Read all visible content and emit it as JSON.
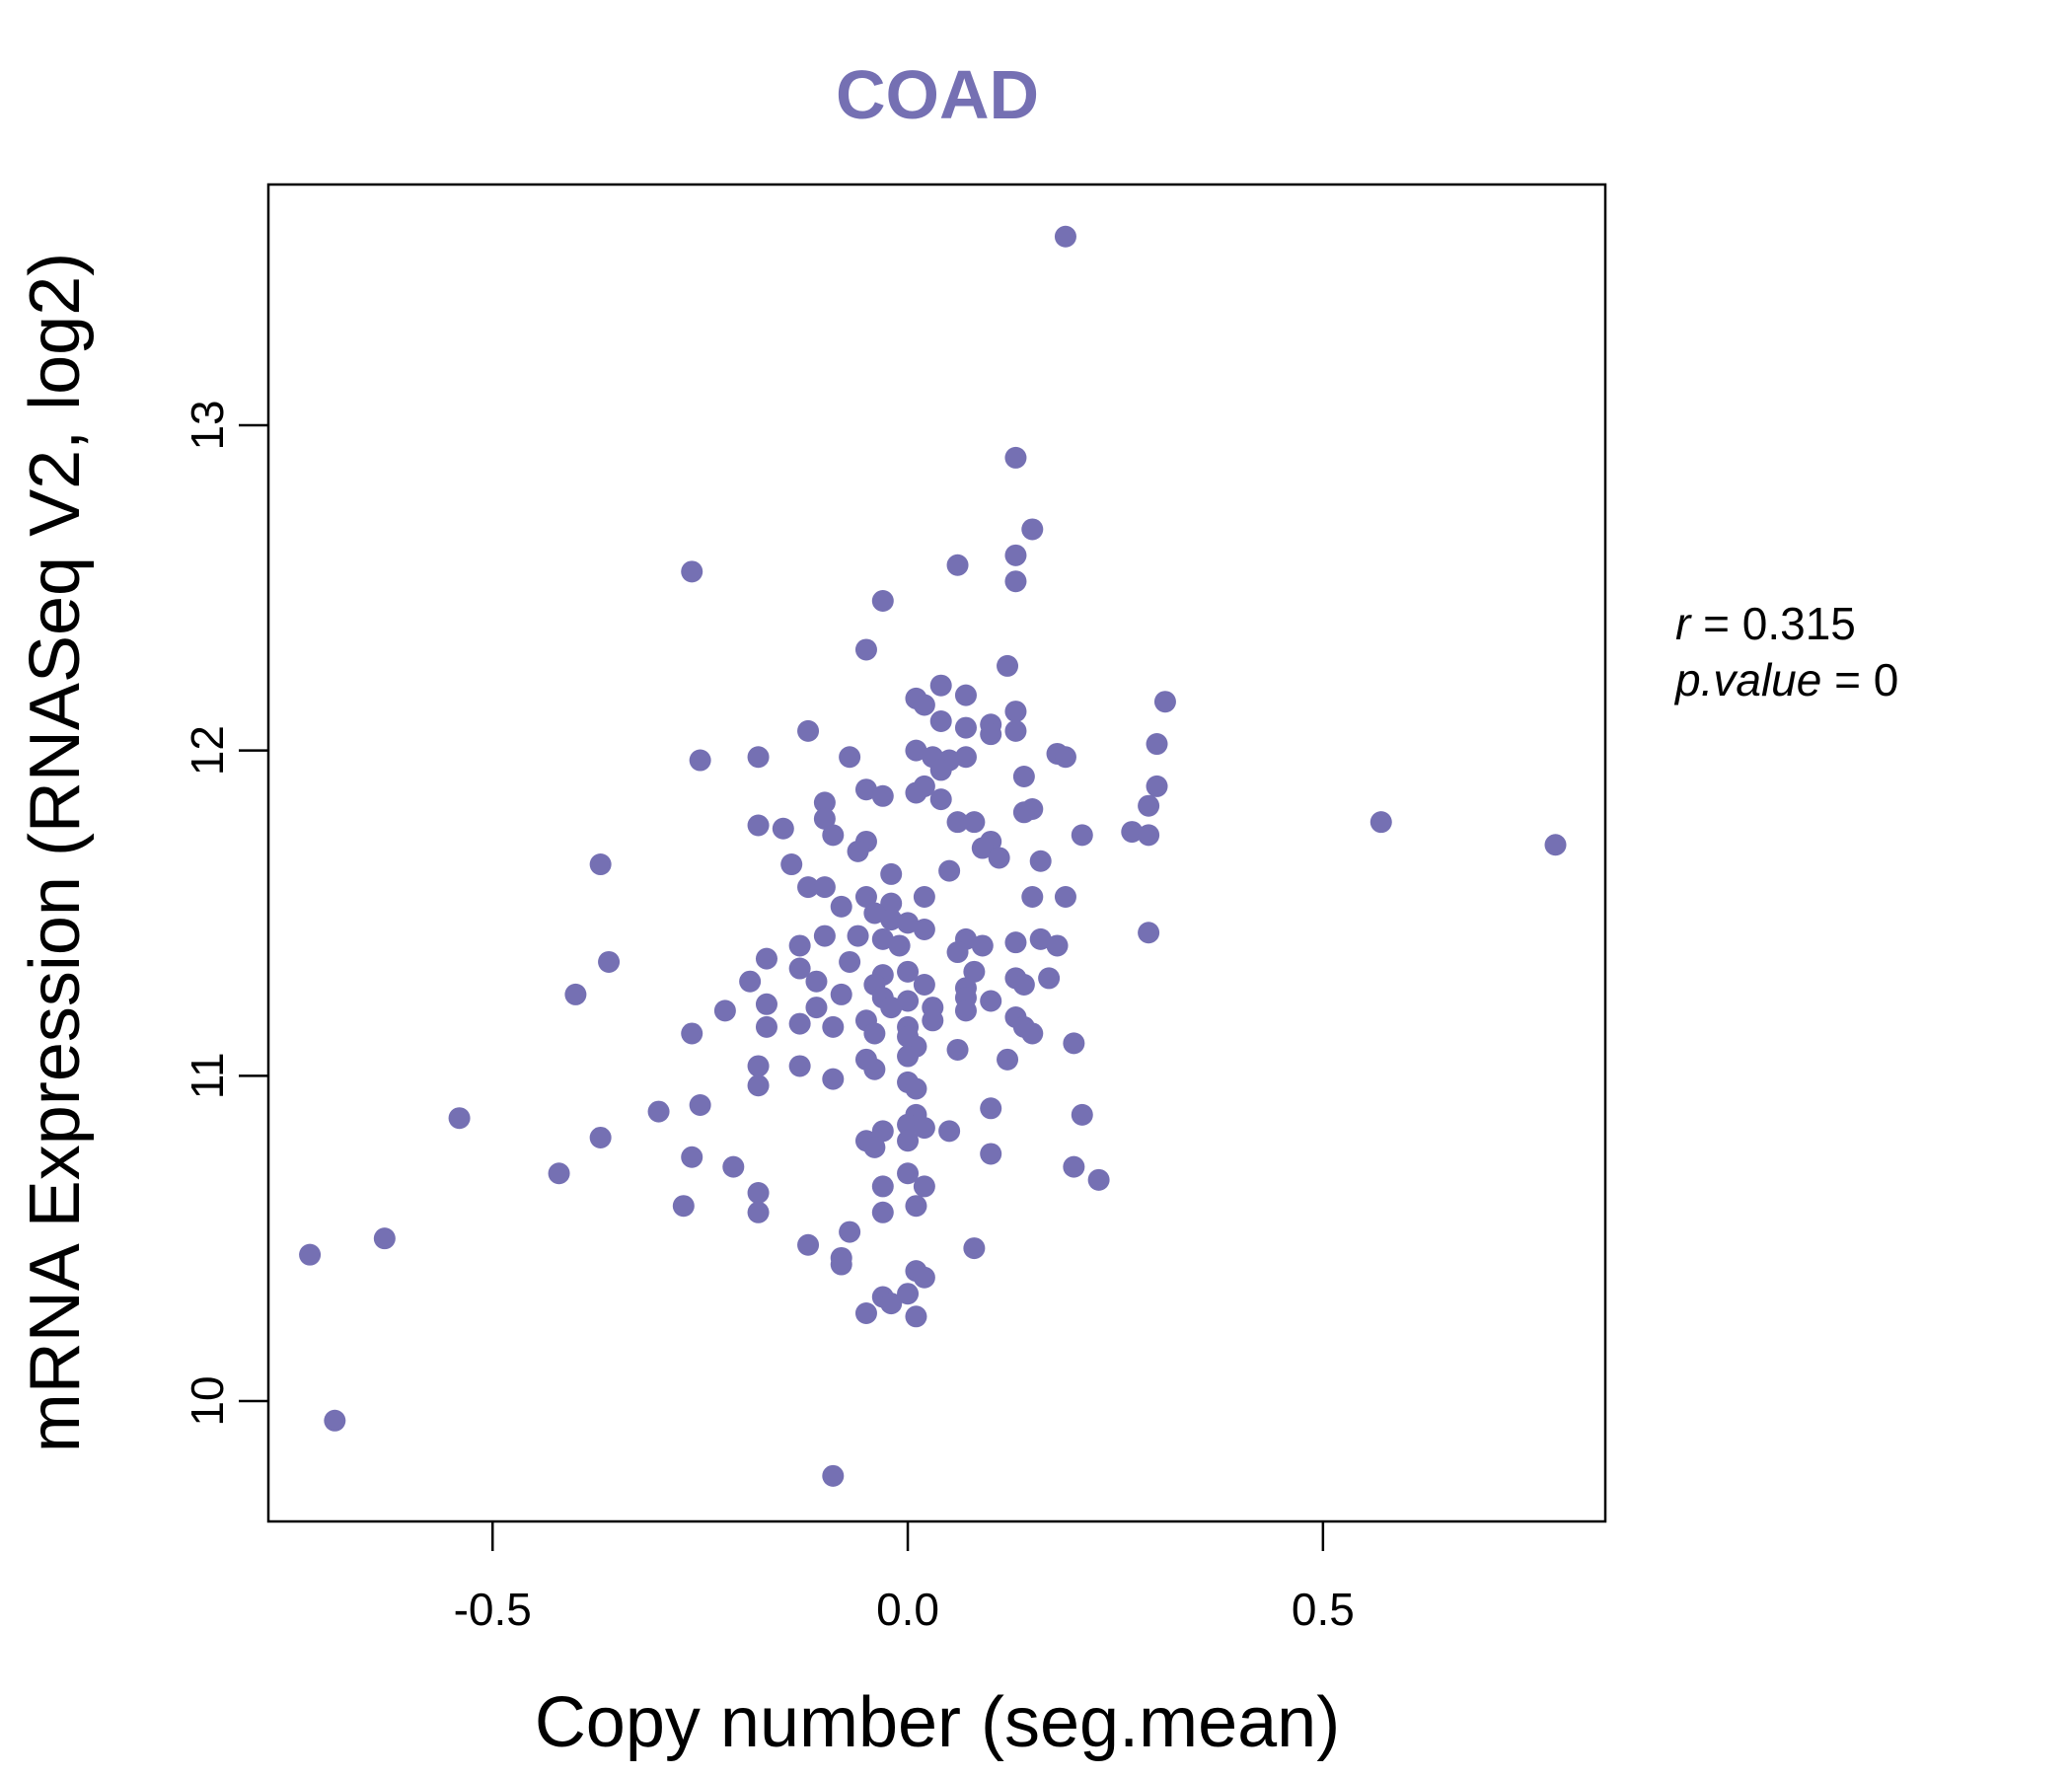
{
  "chart_data": {
    "type": "scatter",
    "title": "COAD",
    "xlabel": "Copy number (seg.mean)",
    "ylabel": "mRNA Expression (RNASeq V2, log2)",
    "xlim": [
      -0.77,
      0.84
    ],
    "ylim": [
      9.63,
      13.74
    ],
    "xticks": [
      -0.5,
      0.0,
      0.5
    ],
    "xtick_labels": [
      "-0.5",
      "0.0",
      "0.5"
    ],
    "yticks": [
      10,
      11,
      12,
      13
    ],
    "ytick_labels": [
      "10",
      "11",
      "12",
      "13"
    ],
    "grid": false,
    "point_color": "#7570b3",
    "stats": {
      "r_label": "r",
      "r_value": "0.315",
      "p_label": "p.value",
      "p_value": "0"
    },
    "points": [
      [
        0.19,
        13.58
      ],
      [
        0.13,
        12.9
      ],
      [
        0.15,
        12.68
      ],
      [
        0.13,
        12.6
      ],
      [
        0.06,
        12.57
      ],
      [
        -0.26,
        12.55
      ],
      [
        0.13,
        12.52
      ],
      [
        -0.03,
        12.46
      ],
      [
        -0.05,
        12.31
      ],
      [
        0.12,
        12.26
      ],
      [
        0.04,
        12.2
      ],
      [
        0.07,
        12.17
      ],
      [
        0.01,
        12.16
      ],
      [
        0.02,
        12.14
      ],
      [
        0.13,
        12.12
      ],
      [
        0.31,
        12.15
      ],
      [
        -0.12,
        12.06
      ],
      [
        0.07,
        12.07
      ],
      [
        0.1,
        12.08
      ],
      [
        0.13,
        12.06
      ],
      [
        0.1,
        12.05
      ],
      [
        0.04,
        12.09
      ],
      [
        0.01,
        12.0
      ],
      [
        -0.07,
        11.98
      ],
      [
        -0.18,
        11.98
      ],
      [
        -0.25,
        11.97
      ],
      [
        0.03,
        11.98
      ],
      [
        0.05,
        11.97
      ],
      [
        0.07,
        11.98
      ],
      [
        0.04,
        11.94
      ],
      [
        0.18,
        11.99
      ],
      [
        0.19,
        11.98
      ],
      [
        0.3,
        12.02
      ],
      [
        0.14,
        11.92
      ],
      [
        -0.05,
        11.88
      ],
      [
        -0.03,
        11.86
      ],
      [
        0.01,
        11.87
      ],
      [
        0.02,
        11.89
      ],
      [
        0.04,
        11.85
      ],
      [
        0.3,
        11.89
      ],
      [
        -0.1,
        11.84
      ],
      [
        0.15,
        11.82
      ],
      [
        0.14,
        11.81
      ],
      [
        0.29,
        11.83
      ],
      [
        0.57,
        11.78
      ],
      [
        -0.18,
        11.77
      ],
      [
        -0.15,
        11.76
      ],
      [
        -0.1,
        11.79
      ],
      [
        0.06,
        11.78
      ],
      [
        0.08,
        11.78
      ],
      [
        0.21,
        11.74
      ],
      [
        0.27,
        11.75
      ],
      [
        0.29,
        11.74
      ],
      [
        0.78,
        11.71
      ],
      [
        -0.09,
        11.74
      ],
      [
        -0.05,
        11.72
      ],
      [
        0.1,
        11.72
      ],
      [
        0.09,
        11.7
      ],
      [
        0.11,
        11.67
      ],
      [
        -0.06,
        11.69
      ],
      [
        0.16,
        11.66
      ],
      [
        -0.37,
        11.65
      ],
      [
        -0.14,
        11.65
      ],
      [
        0.05,
        11.63
      ],
      [
        -0.02,
        11.62
      ],
      [
        0.19,
        11.55
      ],
      [
        -0.12,
        11.58
      ],
      [
        -0.1,
        11.58
      ],
      [
        -0.05,
        11.55
      ],
      [
        -0.02,
        11.53
      ],
      [
        0.02,
        11.55
      ],
      [
        0.15,
        11.55
      ],
      [
        -0.08,
        11.52
      ],
      [
        -0.04,
        11.5
      ],
      [
        -0.02,
        11.48
      ],
      [
        0.0,
        11.47
      ],
      [
        0.02,
        11.45
      ],
      [
        -0.06,
        11.43
      ],
      [
        -0.03,
        11.42
      ],
      [
        -0.1,
        11.43
      ],
      [
        0.07,
        11.42
      ],
      [
        0.09,
        11.4
      ],
      [
        0.13,
        11.41
      ],
      [
        0.16,
        11.42
      ],
      [
        0.18,
        11.4
      ],
      [
        0.29,
        11.44
      ],
      [
        -0.13,
        11.4
      ],
      [
        -0.01,
        11.4
      ],
      [
        0.06,
        11.38
      ],
      [
        -0.36,
        11.35
      ],
      [
        -0.17,
        11.36
      ],
      [
        -0.13,
        11.33
      ],
      [
        -0.07,
        11.35
      ],
      [
        -0.03,
        11.31
      ],
      [
        0.0,
        11.32
      ],
      [
        0.08,
        11.32
      ],
      [
        0.13,
        11.3
      ],
      [
        0.17,
        11.3
      ],
      [
        -0.19,
        11.29
      ],
      [
        -0.11,
        11.29
      ],
      [
        -0.04,
        11.28
      ],
      [
        0.02,
        11.28
      ],
      [
        0.07,
        11.27
      ],
      [
        0.14,
        11.28
      ],
      [
        -0.4,
        11.25
      ],
      [
        -0.08,
        11.25
      ],
      [
        -0.03,
        11.24
      ],
      [
        0.0,
        11.23
      ],
      [
        0.07,
        11.24
      ],
      [
        0.1,
        11.23
      ],
      [
        -0.17,
        11.22
      ],
      [
        -0.11,
        11.21
      ],
      [
        -0.02,
        11.21
      ],
      [
        0.03,
        11.21
      ],
      [
        0.07,
        11.2
      ],
      [
        -0.22,
        11.2
      ],
      [
        -0.13,
        11.16
      ],
      [
        -0.09,
        11.15
      ],
      [
        -0.05,
        11.17
      ],
      [
        0.0,
        11.15
      ],
      [
        0.03,
        11.17
      ],
      [
        0.13,
        11.18
      ],
      [
        0.14,
        11.15
      ],
      [
        0.15,
        11.13
      ],
      [
        -0.17,
        11.15
      ],
      [
        -0.26,
        11.13
      ],
      [
        -0.04,
        11.13
      ],
      [
        0.0,
        11.12
      ],
      [
        0.01,
        11.09
      ],
      [
        0.06,
        11.08
      ],
      [
        0.2,
        11.1
      ],
      [
        0.0,
        11.06
      ],
      [
        0.12,
        11.05
      ],
      [
        -0.05,
        11.05
      ],
      [
        -0.18,
        11.03
      ],
      [
        -0.13,
        11.03
      ],
      [
        -0.04,
        11.02
      ],
      [
        -0.09,
        10.99
      ],
      [
        0.0,
        10.98
      ],
      [
        -0.18,
        10.97
      ],
      [
        0.01,
        10.96
      ],
      [
        -0.25,
        10.91
      ],
      [
        -0.3,
        10.89
      ],
      [
        0.1,
        10.9
      ],
      [
        0.21,
        10.88
      ],
      [
        -0.54,
        10.87
      ],
      [
        0.01,
        10.88
      ],
      [
        0.0,
        10.85
      ],
      [
        -0.03,
        10.83
      ],
      [
        0.02,
        10.84
      ],
      [
        0.05,
        10.83
      ],
      [
        -0.37,
        10.81
      ],
      [
        -0.05,
        10.8
      ],
      [
        0.0,
        10.8
      ],
      [
        -0.04,
        10.78
      ],
      [
        -0.26,
        10.75
      ],
      [
        0.1,
        10.76
      ],
      [
        -0.42,
        10.7
      ],
      [
        -0.21,
        10.72
      ],
      [
        0.2,
        10.72
      ],
      [
        0.23,
        10.68
      ],
      [
        0.0,
        10.7
      ],
      [
        -0.03,
        10.66
      ],
      [
        0.02,
        10.66
      ],
      [
        -0.18,
        10.64
      ],
      [
        -0.27,
        10.6
      ],
      [
        -0.18,
        10.58
      ],
      [
        -0.03,
        10.58
      ],
      [
        0.01,
        10.6
      ],
      [
        -0.07,
        10.52
      ],
      [
        -0.12,
        10.48
      ],
      [
        0.08,
        10.47
      ],
      [
        -0.72,
        10.45
      ],
      [
        -0.08,
        10.44
      ],
      [
        -0.08,
        10.42
      ],
      [
        -0.63,
        10.5
      ],
      [
        0.01,
        10.4
      ],
      [
        0.02,
        10.38
      ],
      [
        -0.03,
        10.32
      ],
      [
        0.0,
        10.33
      ],
      [
        -0.02,
        10.3
      ],
      [
        -0.05,
        10.27
      ],
      [
        0.01,
        10.26
      ],
      [
        -0.69,
        9.94
      ],
      [
        -0.09,
        9.77
      ]
    ]
  }
}
